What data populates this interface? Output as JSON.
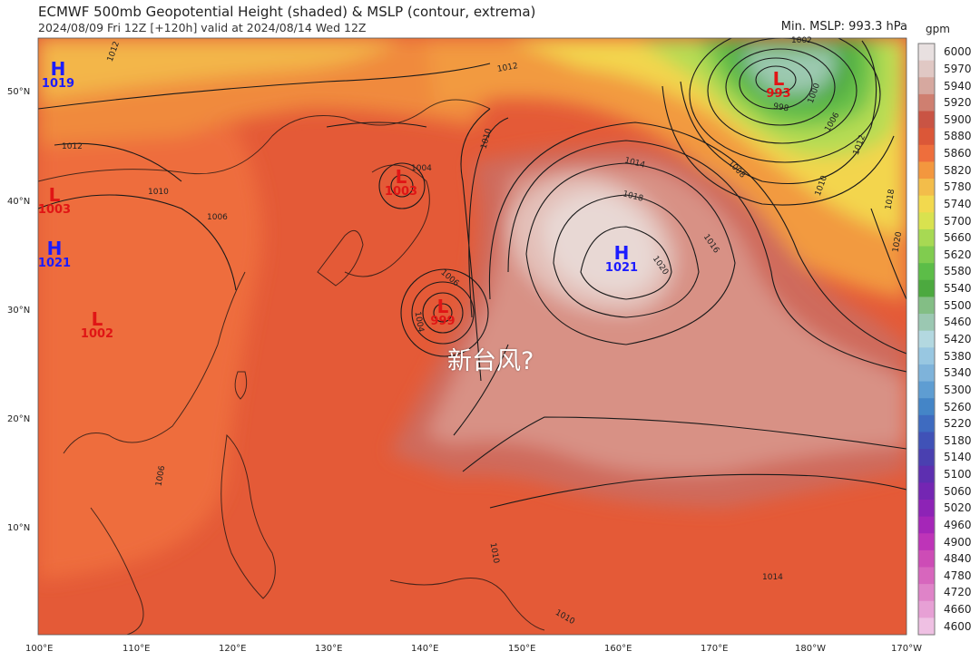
{
  "header": {
    "title": "ECMWF 500mb Geopotential Height (shaded) & MSLP (contour, extrema)",
    "subtitle": "2024/08/09 Fri 12Z [+120h] valid at 2024/08/14 Wed 12Z",
    "min_mslp": "Min. MSLP: 993.3 hPa"
  },
  "colorbar": {
    "unit": "gpm",
    "levels": [
      "6000",
      "5970",
      "5940",
      "5920",
      "5900",
      "5880",
      "5860",
      "5820",
      "5780",
      "5740",
      "5700",
      "5660",
      "5620",
      "5580",
      "5540",
      "5500",
      "5460",
      "5420",
      "5380",
      "5340",
      "5300",
      "5260",
      "5220",
      "5180",
      "5140",
      "5100",
      "5060",
      "5020",
      "4960",
      "4900",
      "4840",
      "4780",
      "4720",
      "4660",
      "4600"
    ],
    "colors": [
      "#e8e0e0",
      "#e0c8c4",
      "#d6a89f",
      "#cf7f70",
      "#c95444",
      "#db5738",
      "#ee6e3c",
      "#f3973e",
      "#f3bd4a",
      "#f2d94e",
      "#d9e24f",
      "#a7d953",
      "#80cc4f",
      "#5cbd48",
      "#4ca93f",
      "#83be85",
      "#9bc8b2",
      "#b3d8e0",
      "#98c7e1",
      "#7eb3da",
      "#5e9dd2",
      "#4485c7",
      "#3e6bc0",
      "#4052b7",
      "#4a40b0",
      "#5d2fb0",
      "#7426b3",
      "#8d23b6",
      "#a526b8",
      "#be34b8",
      "#cd4cb6",
      "#d766bd",
      "#df83c8",
      "#e7a0d5",
      "#efc0e3"
    ]
  },
  "axes": {
    "lat_labels": [
      "50°N",
      "40°N",
      "30°N",
      "20°N",
      "10°N"
    ],
    "lon_labels": [
      "100°E",
      "110°E",
      "120°E",
      "130°E",
      "140°E",
      "150°E",
      "160°E",
      "170°E",
      "180°W",
      "170°W"
    ]
  },
  "centers": [
    {
      "type": "H",
      "value": "1019",
      "color": "#1c1cff"
    },
    {
      "type": "L",
      "value": "1003",
      "color": "#e01515"
    },
    {
      "type": "H",
      "value": "1021",
      "color": "#1c1cff"
    },
    {
      "type": "L",
      "value": "1002",
      "color": "#e01515"
    },
    {
      "type": "L",
      "value": "1003",
      "color": "#e01515"
    },
    {
      "type": "L",
      "value": "999",
      "color": "#e01515"
    },
    {
      "type": "H",
      "value": "1021",
      "color": "#1c1cff"
    },
    {
      "type": "L",
      "value": "993",
      "color": "#e01515"
    }
  ],
  "isobar_labels": [
    "1012",
    "1014",
    "1018",
    "1016",
    "1020",
    "1010",
    "1006",
    "1004",
    "1002",
    "998",
    "1000",
    "1006",
    "1008",
    "1010",
    "1012",
    "1018",
    "1020",
    "1006",
    "1010",
    "1010",
    "1004",
    "1012",
    "1010",
    "1006",
    "1012",
    "1014"
  ],
  "annotation": "新台风?"
}
